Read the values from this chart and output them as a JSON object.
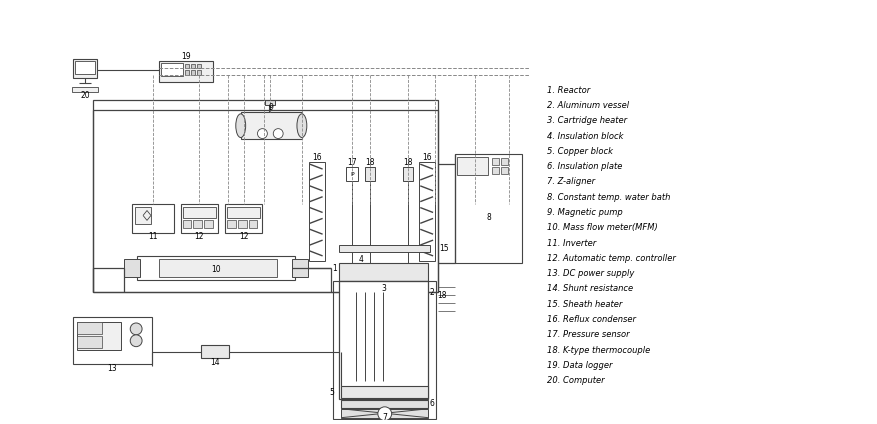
{
  "legend_items": [
    "1. Reactor",
    "2. Aluminum vessel",
    "3. Cartridge heater",
    "4. Insulation block",
    "5. Copper block",
    "6. Insulation plate",
    "7. Z-aligner",
    "8. Constant temp. water bath",
    "9. Magnetic pump",
    "10. Mass flow meter(MFM)",
    "11. Inverter",
    "12. Automatic temp. controller",
    "13. DC power supply",
    "14. Shunt resistance",
    "15. Sheath heater",
    "16. Reflux condenser",
    "17. Pressure sensor",
    "18. K-type thermocouple",
    "19. Data logger",
    "20. Computer"
  ],
  "bg_color": "#ffffff",
  "line_color": "#444444",
  "dashed_color": "#888888",
  "figsize": [
    8.78,
    4.24
  ]
}
